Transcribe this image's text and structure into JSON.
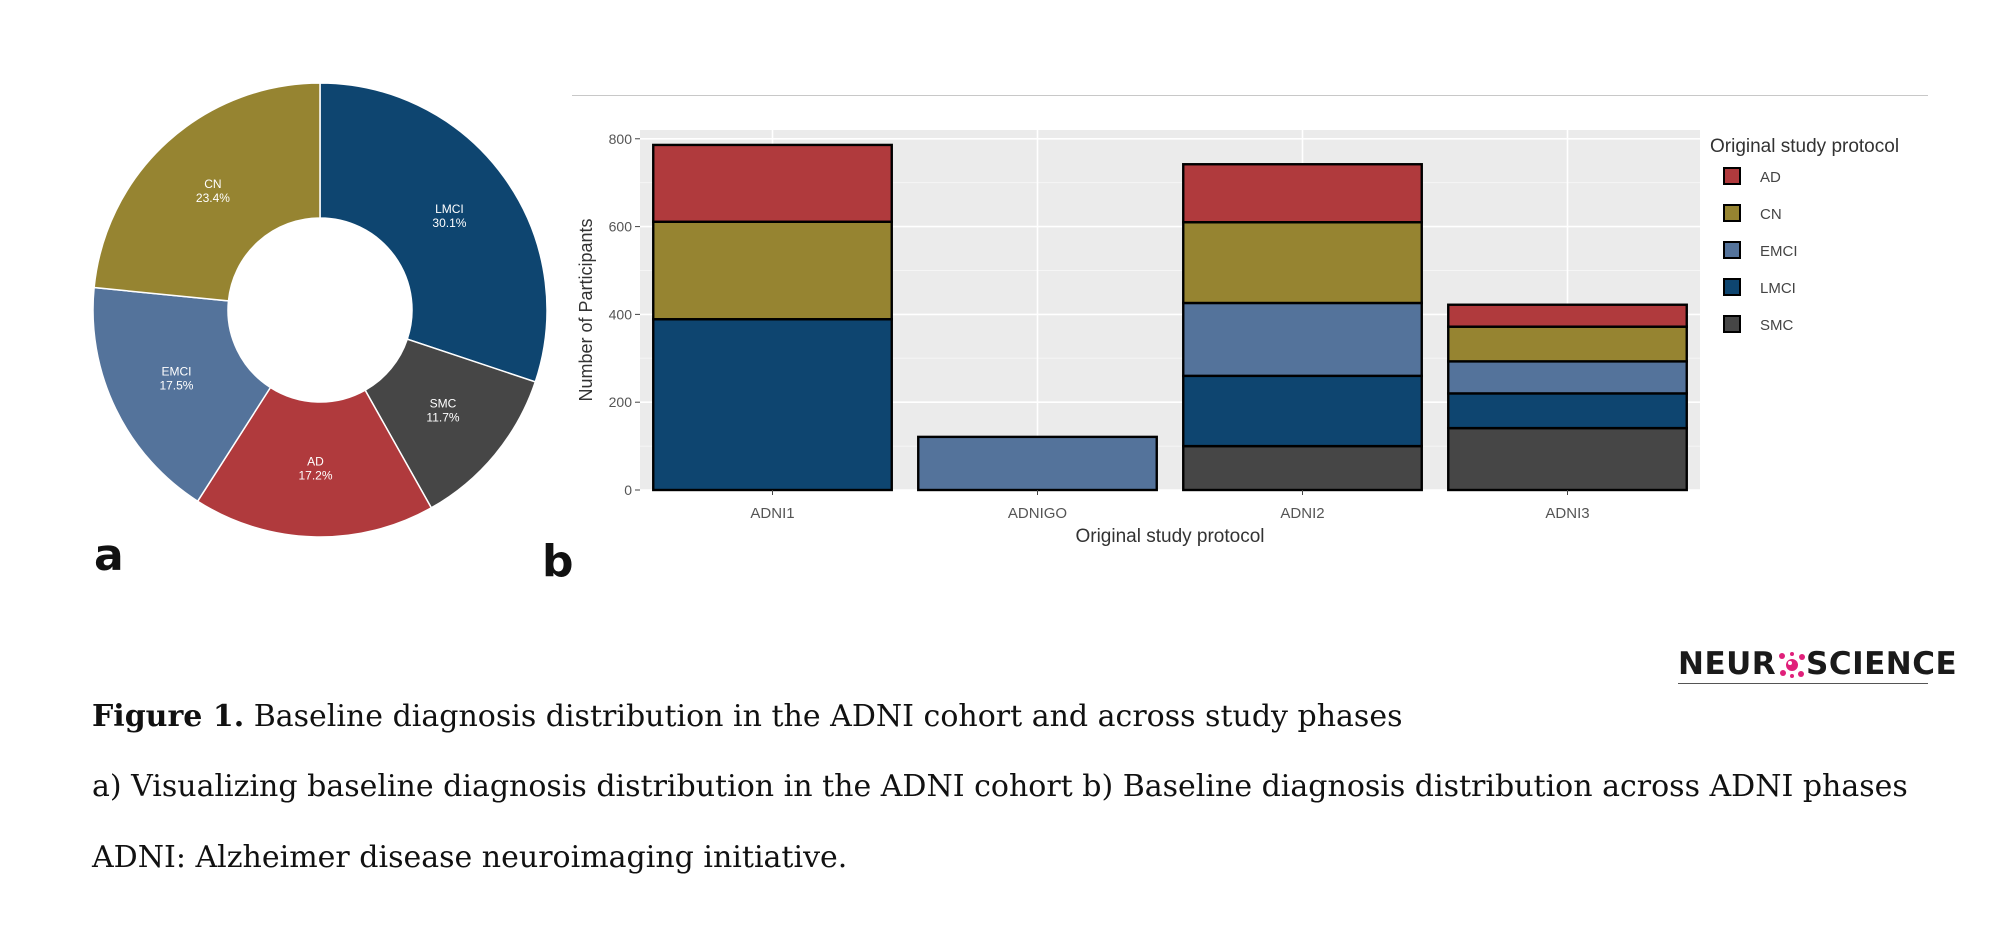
{
  "panel_labels": {
    "a": "a",
    "b": "b"
  },
  "chart_data": [
    {
      "type": "pie",
      "donut": true,
      "slices": [
        {
          "label": "LMCI",
          "percent": 30.1,
          "percent_text": "30.1%",
          "color": "#0e4570"
        },
        {
          "label": "SMC",
          "percent": 11.7,
          "percent_text": "11.7%",
          "color": "#464646"
        },
        {
          "label": "AD",
          "percent": 17.2,
          "percent_text": "17.2%",
          "color": "#b03a3d"
        },
        {
          "label": "EMCI",
          "percent": 17.5,
          "percent_text": "17.5%",
          "color": "#54739b"
        },
        {
          "label": "CN",
          "percent": 23.4,
          "percent_text": "23.4%",
          "color": "#968431"
        }
      ]
    },
    {
      "type": "bar",
      "stacked": true,
      "categories": [
        "ADNI1",
        "ADNIGO",
        "ADNI2",
        "ADNI3"
      ],
      "series": [
        {
          "name": "SMC",
          "color": "#464646",
          "values": [
            0,
            0,
            100,
            141
          ]
        },
        {
          "name": "LMCI",
          "color": "#0e4570",
          "values": [
            389,
            0,
            160,
            79
          ]
        },
        {
          "name": "EMCI",
          "color": "#54739b",
          "values": [
            0,
            121,
            166,
            73
          ]
        },
        {
          "name": "CN",
          "color": "#968431",
          "values": [
            222,
            0,
            184,
            79
          ]
        },
        {
          "name": "AD",
          "color": "#b03a3d",
          "values": [
            175,
            0,
            132,
            50
          ]
        }
      ],
      "xlabel": "Original study protocol",
      "ylabel": "Number of Participants",
      "ylim": [
        0,
        820
      ],
      "yticks": [
        0,
        200,
        400,
        600,
        800
      ],
      "grid": true,
      "legend": {
        "title": "Original study protocol",
        "position": "right",
        "entries": [
          "AD",
          "CN",
          "EMCI",
          "LMCI",
          "SMC"
        ]
      }
    }
  ],
  "logo": {
    "left": "NEUR",
    "right": "SCIENCE"
  },
  "caption": {
    "figure_label": "Figure 1.",
    "title": "Baseline diagnosis distribution in the ADNI cohort and across study phases",
    "line2": "a) Visualizing baseline diagnosis distribution in the ADNI cohort b) Baseline diagnosis distribution across ADNI phases",
    "line3": "ADNI: Alzheimer disease neuroimaging initiative."
  }
}
